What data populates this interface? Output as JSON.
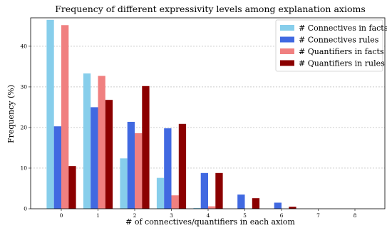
{
  "chart_data": {
    "type": "bar",
    "title": "Frequency of different expressivity levels among explanation axioms",
    "xlabel": "# of connectives/quantifiers in each axiom",
    "ylabel": "Frequency (%)",
    "categories": [
      "0",
      "1",
      "2",
      "3",
      "4",
      "5",
      "6",
      "7",
      "8"
    ],
    "ylim": [
      0,
      47
    ],
    "yticks": [
      "0",
      "10",
      "20",
      "30",
      "40"
    ],
    "grid": "horizontal dashed",
    "legend_position": "top-right",
    "series": [
      {
        "name": "# Connectives in facts",
        "color": "#87CEEB",
        "values": [
          46.5,
          33.3,
          12.4,
          7.6,
          0.2,
          0.0,
          0.0,
          0.0,
          0.0
        ]
      },
      {
        "name": "# Connectives rules",
        "color": "#4169E1",
        "values": [
          20.3,
          25.0,
          21.4,
          19.8,
          8.8,
          3.5,
          1.5,
          0.0,
          0.0
        ]
      },
      {
        "name": "# Quantifiers in facts",
        "color": "#F08080",
        "values": [
          45.2,
          32.7,
          18.6,
          3.3,
          0.6,
          0.0,
          0.0,
          0.0,
          0.0
        ]
      },
      {
        "name": "# Quantifiers in rules",
        "color": "#8B0000",
        "values": [
          10.5,
          26.8,
          30.2,
          20.9,
          8.8,
          2.6,
          0.5,
          0.0,
          0.0
        ]
      }
    ]
  }
}
